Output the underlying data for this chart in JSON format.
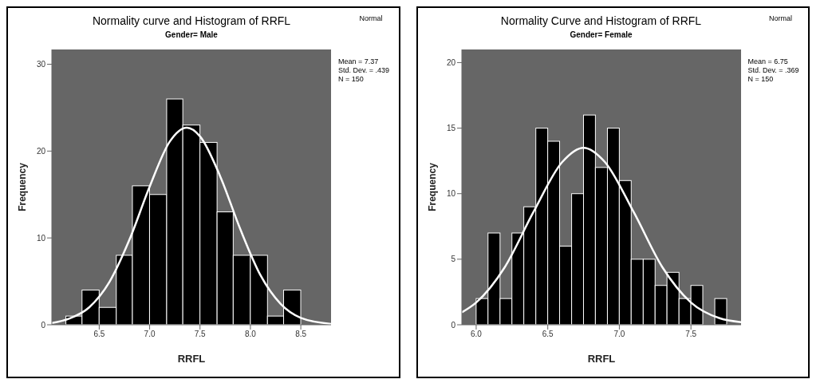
{
  "chart_data": [
    {
      "type": "histogram",
      "title": "Normality curve and Histogram of RRFL",
      "subtitle": "Gender= Male",
      "xlabel": "RRFL",
      "ylabel": "Frequency",
      "color": "#000000",
      "bins": [
        6.17,
        6.33,
        6.5,
        6.67,
        6.83,
        7.0,
        7.17,
        7.33,
        7.5,
        7.67,
        7.83,
        8.0,
        8.17,
        8.33,
        8.5
      ],
      "values": [
        1,
        4,
        2,
        8,
        16,
        15,
        26,
        23,
        21,
        13,
        8,
        8,
        1,
        4
      ],
      "series": [
        {
          "name": "Normal",
          "type": "line",
          "color": "#ffffff",
          "x": [
            6.03,
            6.2,
            6.4,
            6.6,
            6.8,
            7.0,
            7.2,
            7.37,
            7.5,
            7.7,
            7.9,
            8.1,
            8.3,
            8.5,
            8.8
          ],
          "values": [
            0.2,
            0.7,
            2,
            4.9,
            9.8,
            15.9,
            21.1,
            22.7,
            21.7,
            17.1,
            11,
            5.7,
            2.4,
            0.8,
            0.1
          ]
        }
      ],
      "xlim": [
        6.03,
        8.8
      ],
      "xticks": [
        6.5,
        {
          "value": 7,
          "label": "7.0"
        },
        7.5,
        {
          "value": 8,
          "label": "8.0"
        },
        8.5
      ],
      "ylim": [
        0,
        31.7
      ],
      "yticks": [
        0,
        10,
        20,
        30
      ],
      "legend": "top right",
      "annotations": [
        "Mean = 7.37",
        "Std. Dev. = .439",
        "N = 150"
      ]
    },
    {
      "type": "histogram",
      "title": "Normality Curve and Histogram of RRFL",
      "subtitle": "Gender= Female",
      "xlabel": "RRFL",
      "ylabel": "Frequency",
      "color": "#000000",
      "bins": [
        6.0,
        6.083,
        6.167,
        6.25,
        6.333,
        6.417,
        6.5,
        6.583,
        6.667,
        6.75,
        6.833,
        6.917,
        7.0,
        7.083,
        7.167,
        7.25,
        7.333,
        7.417,
        7.5,
        7.583,
        7.667,
        7.75
      ],
      "values": [
        2,
        7,
        2,
        7,
        9,
        15,
        14,
        6,
        10,
        16,
        12,
        15,
        11,
        5,
        5,
        3,
        4,
        2,
        3,
        0,
        2
      ],
      "series": [
        {
          "name": "Normal",
          "type": "line",
          "color": "#ffffff",
          "x": [
            5.9,
            6.0,
            6.2,
            6.4,
            6.6,
            6.75,
            6.9,
            7.1,
            7.3,
            7.5,
            7.7,
            7.85
          ],
          "values": [
            0.95,
            1.7,
            4.4,
            8.6,
            12.4,
            13.5,
            12.4,
            8.6,
            4.4,
            1.7,
            0.5,
            0.2
          ]
        }
      ],
      "xlim": [
        5.9,
        7.85
      ],
      "xticks": [
        {
          "value": 6,
          "label": "6.0"
        },
        6.5,
        {
          "value": 7,
          "label": "7.0"
        },
        7.5
      ],
      "ylim": [
        0,
        21
      ],
      "yticks": [
        0,
        5,
        10,
        15,
        20
      ],
      "legend": "top right",
      "annotations": [
        "Mean = 6.75",
        "Std. Dev. = .369",
        "N = 150"
      ]
    }
  ]
}
